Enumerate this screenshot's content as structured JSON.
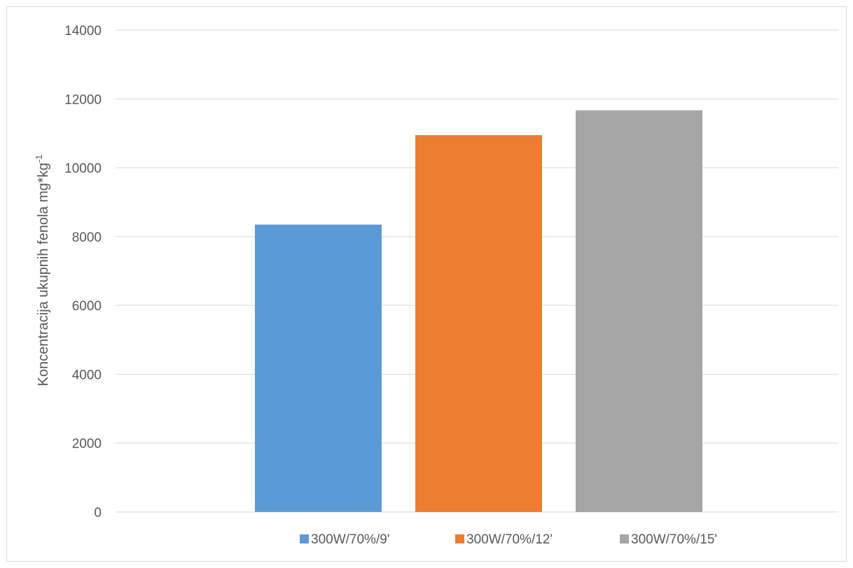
{
  "chart_data": {
    "type": "bar",
    "title": "",
    "xlabel": "",
    "ylabel": "Koncentracija ukupnih fenola mg*kg",
    "ylabel_superscript": "-1",
    "ylim": [
      0,
      14000
    ],
    "yticks": [
      0,
      2000,
      4000,
      6000,
      8000,
      10000,
      12000,
      14000
    ],
    "grid": true,
    "legend_position": "bottom",
    "series": [
      {
        "name": "300W/70%/9'",
        "value": 8350,
        "color": "#5B9BD5"
      },
      {
        "name": "300W/70%/12'",
        "value": 10950,
        "color": "#ED7D31"
      },
      {
        "name": "300W/70%/15'",
        "value": 11670,
        "color": "#A5A5A5"
      }
    ]
  }
}
